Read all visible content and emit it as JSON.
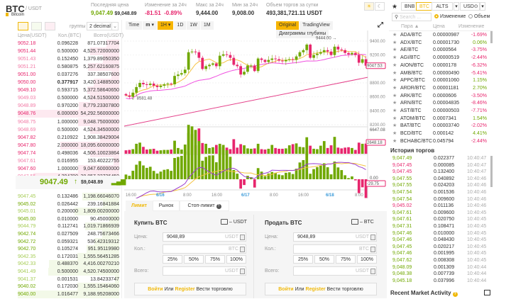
{
  "header": {
    "symbol": "BTC",
    "quote": "/ USDT",
    "name": "Bitcoin",
    "stats": [
      {
        "label": "Последняя цена",
        "value": "9,047.49",
        "extra": "$9,048.89"
      },
      {
        "label": "Изменение за 24ч",
        "value": "-81.51",
        "extra": "-0.89%"
      },
      {
        "label": "Макс за 24ч",
        "value": "9,444.00"
      },
      {
        "label": "Мин за 24ч",
        "value": "9,008.00"
      },
      {
        "label": "Объем торгов за сутки",
        "value": "493,381,721.11 USDT"
      }
    ]
  },
  "orderbook": {
    "group_label": "группы",
    "group_value": "2 decimal",
    "columns": [
      "Цена(USDT)",
      "Кол.(BTC)",
      "Всего(USDT)"
    ],
    "asks": [
      [
        "9052.18",
        "0.096228",
        "871.07317704"
      ],
      [
        "9051.44",
        "0.500000",
        "4,525.72000000"
      ],
      [
        "9051.43",
        "0.152450",
        "1,379.89050350"
      ],
      [
        "9051.21",
        "0.580875",
        "5,257.62160875"
      ],
      [
        "9051.00",
        "0.037276",
        "337.38507600"
      ],
      [
        "9050.00",
        "0.377917",
        "3,420.14885000"
      ],
      [
        "9049.10",
        "0.593715",
        "5,372.58640650"
      ],
      [
        "9049.03",
        "0.500000",
        "4,524.51500000"
      ],
      [
        "9048.89",
        "0.970200",
        "8,779.23307800"
      ],
      [
        "9048.76",
        "6.000000",
        "54,292.56000000"
      ],
      [
        "9048.75",
        "1.000000",
        "9,048.75000000"
      ],
      [
        "9048.69",
        "0.500000",
        "4,524.34500000"
      ],
      [
        "9047.82",
        "0.210922",
        "1,908.38429004"
      ],
      [
        "9047.80",
        "2.000000",
        "18,095.60000000"
      ],
      [
        "9047.74",
        "0.498036",
        "4,506.10023864"
      ],
      [
        "9047.61",
        "0.016955",
        "153.40222755"
      ],
      [
        "9047.60",
        "1.000000",
        "9,047.60000000"
      ],
      [
        "9047.55",
        "4.294790",
        "38,857.32726450"
      ]
    ],
    "last_price": "9047.49",
    "last_arrow": "↑",
    "last_usd": "$9,048.89",
    "bids": [
      [
        "9047.45",
        "0.132486",
        "1,198.66046070"
      ],
      [
        "9045.02",
        "0.026442",
        "239.16841884"
      ],
      [
        "9045.01",
        "0.200000",
        "1,809.00200000"
      ],
      [
        "9045.00",
        "0.010000",
        "90.45000000"
      ],
      [
        "9044.79",
        "0.112741",
        "1,019.71866939"
      ],
      [
        "9042.74",
        "0.027509",
        "248.75673466"
      ],
      [
        "9042.72",
        "0.059321",
        "536.42319312"
      ],
      [
        "9042.70",
        "0.105274",
        "951.95119980"
      ],
      [
        "9042.35",
        "0.172031",
        "1,555.56451285"
      ],
      [
        "9042.33",
        "0.488370",
        "4,416.00270210"
      ],
      [
        "9041.49",
        "0.500000",
        "4,520.74500000"
      ],
      [
        "9041.37",
        "0.001531",
        "13.84233747"
      ],
      [
        "9040.02",
        "0.172030",
        "1,555.15464060"
      ],
      [
        "9040.00",
        "1.016477",
        "9,188.95208000"
      ]
    ]
  },
  "chart": {
    "toolbar": [
      "Time",
      "m",
      "1H",
      "1D",
      "1W",
      "1M"
    ],
    "active_interval": "1H",
    "views": [
      "Original",
      "TradingView",
      "Диаграммы глубины"
    ],
    "active_view": "Original",
    "y_ticks": [
      "9400.00",
      "9200.00",
      "8800.00",
      "8600.00",
      "8400.00",
      "8200.00"
    ],
    "current_price": "9047.53",
    "high_label": "9444.00 →",
    "low_label": "← 8581.48",
    "vol_max": "6647.08",
    "vol_current": "2648.18",
    "macd_zero": "0.00",
    "macd_current": "-29.75",
    "x_ticks": [
      "16:00",
      "6/16",
      "8:00",
      "16:00",
      "6/17",
      "8:00",
      "16:00",
      "6/18",
      "8:00"
    ],
    "closes": [
      8620,
      8600,
      8660,
      8740,
      8800,
      8780,
      8770,
      8790,
      8760,
      8740,
      8760,
      8780,
      8790,
      8780,
      8900,
      8920,
      8940,
      8990,
      9240,
      9250,
      9240,
      9160,
      9000,
      9040,
      9060,
      9080,
      9040,
      9190,
      9210,
      9200,
      9160,
      9060,
      9040,
      8920,
      8960,
      9050,
      9050,
      8970,
      9150,
      9130,
      9100,
      9130,
      9150,
      9140,
      9120,
      9110,
      9130,
      9140,
      9130,
      9180,
      9240,
      9270,
      9350,
      9160,
      9200,
      9220,
      9240,
      9270,
      9250,
      9200,
      9320,
      9280,
      9270,
      9230,
      9210,
      9230,
      9200,
      9090,
      9140,
      9047
    ],
    "volumes": [
      900,
      1000,
      1200,
      2600,
      2900,
      1800,
      1100,
      1200,
      1300,
      800,
      900,
      1000,
      1000,
      1100,
      3400,
      1500,
      1100,
      2400,
      5400,
      5100,
      2200,
      6600,
      2800,
      2600,
      1500,
      1700,
      2300,
      2600,
      2300,
      1600,
      1200,
      3800,
      1600,
      2500,
      2200,
      1400,
      1300,
      1400,
      2600,
      1200,
      1100,
      1300,
      2300,
      1500,
      1300,
      1300,
      1400,
      2200,
      2500,
      2700,
      1800,
      1700,
      4300,
      2100,
      1300,
      1200,
      2100,
      3300,
      1500,
      2200,
      4400,
      1600,
      1400,
      1600,
      1700,
      1500,
      1000,
      2900,
      2600,
      2648
    ]
  },
  "trade": {
    "tabs": [
      "Лимит",
      "Рынок",
      "Стоп-лимит"
    ],
    "buy": {
      "title": "Купить BTC",
      "wallet": "– USDT",
      "price": "9048,89",
      "price_unit": "USDT",
      "qty_unit": "BTC",
      "total_unit": "USDT"
    },
    "sell": {
      "title": "Продать BTC",
      "wallet": "– BTC",
      "price": "9048,89",
      "price_unit": "USDT",
      "qty_unit": "BTC",
      "total_unit": "USDT"
    },
    "labels": {
      "price": "Цена:",
      "qty": "Кол.:",
      "total": "Всего:"
    },
    "pcts": [
      "25%",
      "50%",
      "75%",
      "100%"
    ],
    "login": "Войти",
    "or": "Или",
    "register": "Register",
    "trade_text": "Вести торговлю"
  },
  "markets": {
    "tabs": [
      "BNB",
      "BTC",
      "ALTS",
      "USD⊙"
    ],
    "active_tab": "BTC",
    "search_placeholder": "Search ...",
    "radio": [
      "Изменение",
      "Объем"
    ],
    "columns": [
      "Пара ▲",
      "Цена",
      "Изменение"
    ],
    "rows": [
      [
        "ADA/BTC",
        "0.00000987",
        "-1.69%"
      ],
      [
        "ADX/BTC",
        "0.00001730",
        "0.06%"
      ],
      [
        "AE/BTC",
        "0.0000564",
        "-3.75%"
      ],
      [
        "AGI/BTC",
        "0.00000519",
        "-2.44%"
      ],
      [
        "AION/BTC",
        "0.0000178",
        "-6.32%"
      ],
      [
        "AMB/BTC",
        "0.00000490",
        "-5.41%"
      ],
      [
        "APPC/BTC",
        "0.00001060",
        "1.15%"
      ],
      [
        "ARDR/BTC",
        "0.00001181",
        "2.70%"
      ],
      [
        "ARK/BTC",
        "0.0000606",
        "-3.50%"
      ],
      [
        "ARN/BTC",
        "0.00004835",
        "-8.46%"
      ],
      [
        "AST/BTC",
        "0.00000503",
        "-7.71%"
      ],
      [
        "ATOM/BTC",
        "0.0007341",
        "1.54%"
      ],
      [
        "BAT/BTC",
        "0.00003740",
        "-2.02%"
      ],
      [
        "BCD/BTC",
        "0.000142",
        "4.41%"
      ],
      [
        "BCHABC/BTC",
        "0.045794",
        "-2.44%"
      ]
    ]
  },
  "history": {
    "title": "История торгов",
    "rows": [
      [
        "9,047.49",
        "0.022377",
        "10:40:47",
        "up"
      ],
      [
        "9,047.45",
        "0.000085",
        "10:40:47",
        "down"
      ],
      [
        "9,047.45",
        "0.132400",
        "10:40:47",
        "down"
      ],
      [
        "9,047.55",
        "0.040892",
        "10:40:46",
        "up"
      ],
      [
        "9,047.55",
        "0.024203",
        "10:40:46",
        "up"
      ],
      [
        "9,047.54",
        "0.001536",
        "10:40:46",
        "up"
      ],
      [
        "9,047.54",
        "0.009600",
        "10:40:46",
        "up"
      ],
      [
        "9,045.02",
        "0.011136",
        "10:40:46",
        "down"
      ],
      [
        "9,047.61",
        "0.009600",
        "10:40:45",
        "up"
      ],
      [
        "9,047.61",
        "0.020750",
        "10:40:45",
        "up"
      ],
      [
        "9,047.31",
        "0.108471",
        "10:40:45",
        "up"
      ],
      [
        "9,047.46",
        "0.010000",
        "10:40:45",
        "up"
      ],
      [
        "9,047.46",
        "0.048430",
        "10:40:45",
        "up"
      ],
      [
        "9,047.45",
        "0.020217",
        "10:40:45",
        "up"
      ],
      [
        "9,047.46",
        "0.001995",
        "10:40:45",
        "up"
      ],
      [
        "9,047.62",
        "0.008308",
        "10:40:45",
        "up"
      ],
      [
        "9,048.09",
        "0.001309",
        "10:40:44",
        "up"
      ],
      [
        "9,048.38",
        "0.007739",
        "10:40:44",
        "up"
      ],
      [
        "9,045.18",
        "0.037996",
        "10:40:44",
        "up"
      ]
    ]
  },
  "recent": {
    "title": "Recent Market Activity"
  },
  "colors": {
    "up": "#70a800",
    "down": "#e7266d",
    "accent": "#f7b500",
    "ma7": "#f5c342",
    "ma25": "#f050e0",
    "ma99": "#e4418a",
    "dif": "#9b3fd0"
  }
}
